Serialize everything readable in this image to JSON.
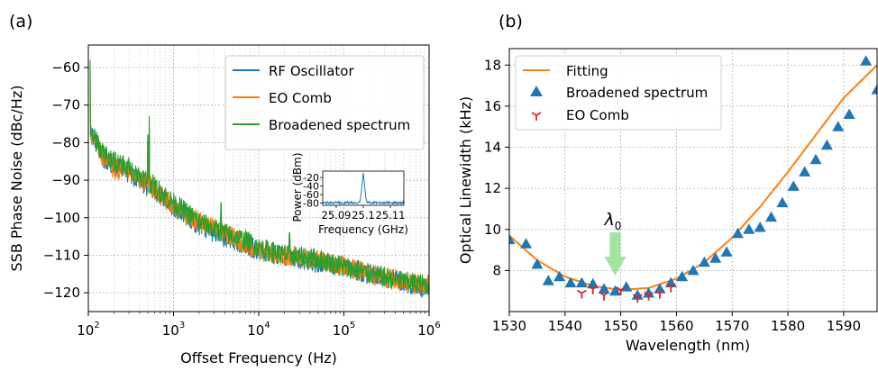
{
  "chart_data": [
    {
      "panel_label": "(a)",
      "type": "line",
      "xlabel": "Offset Frequency (Hz)",
      "ylabel": "SSB Phase Noise (dBc/Hz)",
      "xscale": "log",
      "xlim": [
        100,
        1000000
      ],
      "ylim": [
        -125,
        -54
      ],
      "xticks": [
        100,
        1000,
        10000,
        100000,
        1000000
      ],
      "xtick_labels": [
        "2",
        "3",
        "4",
        "5",
        "6"
      ],
      "yticks": [
        -60,
        -70,
        -80,
        -90,
        -100,
        -110,
        -120
      ],
      "ytick_labels": [
        "−60",
        "−70",
        "−80",
        "−90",
        "−100",
        "−110",
        "−120"
      ],
      "grid": true,
      "legend_position": "top-right",
      "series": [
        {
          "name": "RF Oscillator",
          "color": "#1f77b4",
          "points": [
            [
              105,
              -77
            ],
            [
              120,
              -79
            ],
            [
              150,
              -84
            ],
            [
              200,
              -86
            ],
            [
              300,
              -88
            ],
            [
              500,
              -92
            ],
            [
              700,
              -94
            ],
            [
              1000,
              -97
            ],
            [
              1500,
              -100
            ],
            [
              2000,
              -102
            ],
            [
              3000,
              -104
            ],
            [
              5000,
              -106
            ],
            [
              7000,
              -107
            ],
            [
              10000,
              -109
            ],
            [
              20000,
              -110
            ],
            [
              50000,
              -112
            ],
            [
              100000,
              -113
            ],
            [
              200000,
              -115
            ],
            [
              500000,
              -117
            ],
            [
              1000000,
              -119
            ]
          ],
          "spikes": [
            [
              105,
              -60
            ],
            [
              300,
              -85
            ],
            [
              500,
              -79
            ],
            [
              520,
              -76
            ],
            [
              3600,
              -98
            ],
            [
              23000,
              -104
            ]
          ]
        },
        {
          "name": "EO Comb",
          "color": "#ff7f0e",
          "points": [
            [
              105,
              -78
            ],
            [
              120,
              -80
            ],
            [
              150,
              -84
            ],
            [
              200,
              -87
            ],
            [
              300,
              -88
            ],
            [
              500,
              -91
            ],
            [
              700,
              -94
            ],
            [
              1000,
              -97
            ],
            [
              1500,
              -100
            ],
            [
              2000,
              -101
            ],
            [
              3000,
              -103
            ],
            [
              5000,
              -105
            ],
            [
              7000,
              -107
            ],
            [
              10000,
              -109
            ],
            [
              20000,
              -110
            ],
            [
              50000,
              -111
            ],
            [
              100000,
              -113
            ],
            [
              200000,
              -115
            ],
            [
              500000,
              -117
            ],
            [
              1000000,
              -118
            ]
          ],
          "spikes": [
            [
              105,
              -61
            ],
            [
              300,
              -86
            ],
            [
              500,
              -80
            ],
            [
              520,
              -77
            ],
            [
              3600,
              -99
            ],
            [
              23000,
              -105
            ]
          ]
        },
        {
          "name": "Broadened spectrum",
          "color": "#2ca02c",
          "points": [
            [
              105,
              -77
            ],
            [
              120,
              -79
            ],
            [
              150,
              -83
            ],
            [
              200,
              -85
            ],
            [
              300,
              -87
            ],
            [
              500,
              -90
            ],
            [
              700,
              -93
            ],
            [
              1000,
              -96
            ],
            [
              1500,
              -99
            ],
            [
              2000,
              -101
            ],
            [
              3000,
              -103
            ],
            [
              5000,
              -105
            ],
            [
              7000,
              -106
            ],
            [
              10000,
              -108
            ],
            [
              20000,
              -110
            ],
            [
              50000,
              -111
            ],
            [
              100000,
              -113
            ],
            [
              200000,
              -115
            ],
            [
              500000,
              -117
            ],
            [
              1000000,
              -118
            ]
          ],
          "spikes": [
            [
              105,
              -58
            ],
            [
              300,
              -84
            ],
            [
              500,
              -78
            ],
            [
              520,
              -73
            ],
            [
              3600,
              -96
            ],
            [
              23000,
              -104
            ]
          ]
        }
      ],
      "inset": {
        "type": "line",
        "xlabel": "Frequency (GHz)",
        "ylabel": "Power (dBm)",
        "xlim": [
          25.085,
          25.115
        ],
        "ylim": [
          -85,
          -5
        ],
        "xticks": [
          25.09,
          25.1,
          25.11
        ],
        "xtick_labels": [
          "25.09",
          "25.1",
          "25.11"
        ],
        "yticks": [
          -20,
          -40,
          -60,
          -80
        ],
        "ytick_labels": [
          "-20",
          "-40",
          "-60",
          "-80"
        ],
        "series": [
          {
            "color": "#1f77b4",
            "points": [
              [
                25.085,
                -79
              ],
              [
                25.0985,
                -79
              ],
              [
                25.099,
                -70
              ],
              [
                25.0995,
                -40
              ],
              [
                25.1,
                -9
              ],
              [
                25.1005,
                -40
              ],
              [
                25.101,
                -70
              ],
              [
                25.1015,
                -79
              ],
              [
                25.115,
                -79
              ]
            ]
          }
        ]
      }
    },
    {
      "panel_label": "(b)",
      "type": "scatter",
      "xlabel": "Wavelength (nm)",
      "ylabel": "Optical Linewidth (kHz)",
      "xlim": [
        1530,
        1596
      ],
      "ylim": [
        6,
        18.8
      ],
      "xticks": [
        1530,
        1540,
        1550,
        1560,
        1570,
        1580,
        1590
      ],
      "xtick_labels": [
        "1530",
        "1540",
        "1550",
        "1560",
        "1570",
        "1580",
        "1590"
      ],
      "yticks": [
        8,
        10,
        12,
        14,
        16,
        18
      ],
      "ytick_labels": [
        "8",
        "10",
        "12",
        "14",
        "16",
        "18"
      ],
      "grid": true,
      "legend_position": "top-left",
      "annotation": {
        "text_symbol": "λ",
        "text_sub": "0",
        "x": 1549,
        "arrow_color": "#90e090"
      },
      "series": [
        {
          "name": "Fitting",
          "kind": "line",
          "color": "#ff7f0e",
          "points": [
            [
              1530,
              9.7
            ],
            [
              1535,
              8.5
            ],
            [
              1540,
              7.7
            ],
            [
              1545,
              7.25
            ],
            [
              1550,
              7.05
            ],
            [
              1555,
              7.15
            ],
            [
              1560,
              7.6
            ],
            [
              1565,
              8.4
            ],
            [
              1570,
              9.6
            ],
            [
              1575,
              11.1
            ],
            [
              1580,
              12.8
            ],
            [
              1585,
              14.6
            ],
            [
              1590,
              16.4
            ],
            [
              1596,
              18.0
            ]
          ]
        },
        {
          "name": "Broadened spectrum",
          "kind": "scatter",
          "marker": "triangle",
          "color": "#1f77b4",
          "points": [
            [
              1530,
              9.5
            ],
            [
              1533,
              9.3
            ],
            [
              1535,
              8.3
            ],
            [
              1537,
              7.5
            ],
            [
              1539,
              7.7
            ],
            [
              1541,
              7.4
            ],
            [
              1543,
              7.4
            ],
            [
              1545,
              7.35
            ],
            [
              1547,
              7.1
            ],
            [
              1549,
              7.0
            ],
            [
              1551,
              7.2
            ],
            [
              1553,
              6.8
            ],
            [
              1555,
              6.9
            ],
            [
              1557,
              7.1
            ],
            [
              1559,
              7.4
            ],
            [
              1561,
              7.7
            ],
            [
              1563,
              8.0
            ],
            [
              1565,
              8.4
            ],
            [
              1567,
              8.6
            ],
            [
              1569,
              8.9
            ],
            [
              1571,
              9.8
            ],
            [
              1573,
              10.0
            ],
            [
              1575,
              10.1
            ],
            [
              1577,
              10.6
            ],
            [
              1579,
              11.3
            ],
            [
              1581,
              12.1
            ],
            [
              1583,
              12.8
            ],
            [
              1585,
              13.4
            ],
            [
              1587,
              14.1
            ],
            [
              1589,
              15.0
            ],
            [
              1591,
              15.6
            ],
            [
              1594,
              18.2
            ],
            [
              1596,
              16.8
            ]
          ]
        },
        {
          "name": "EO Comb",
          "kind": "scatter",
          "marker": "tri_down",
          "color": "#d62728",
          "points": [
            [
              1543,
              6.9
            ],
            [
              1545,
              7.1
            ],
            [
              1547,
              6.8
            ],
            [
              1550,
              7.05
            ],
            [
              1553,
              6.7
            ],
            [
              1555,
              6.8
            ],
            [
              1557,
              6.9
            ],
            [
              1559,
              7.2
            ]
          ]
        }
      ]
    }
  ]
}
